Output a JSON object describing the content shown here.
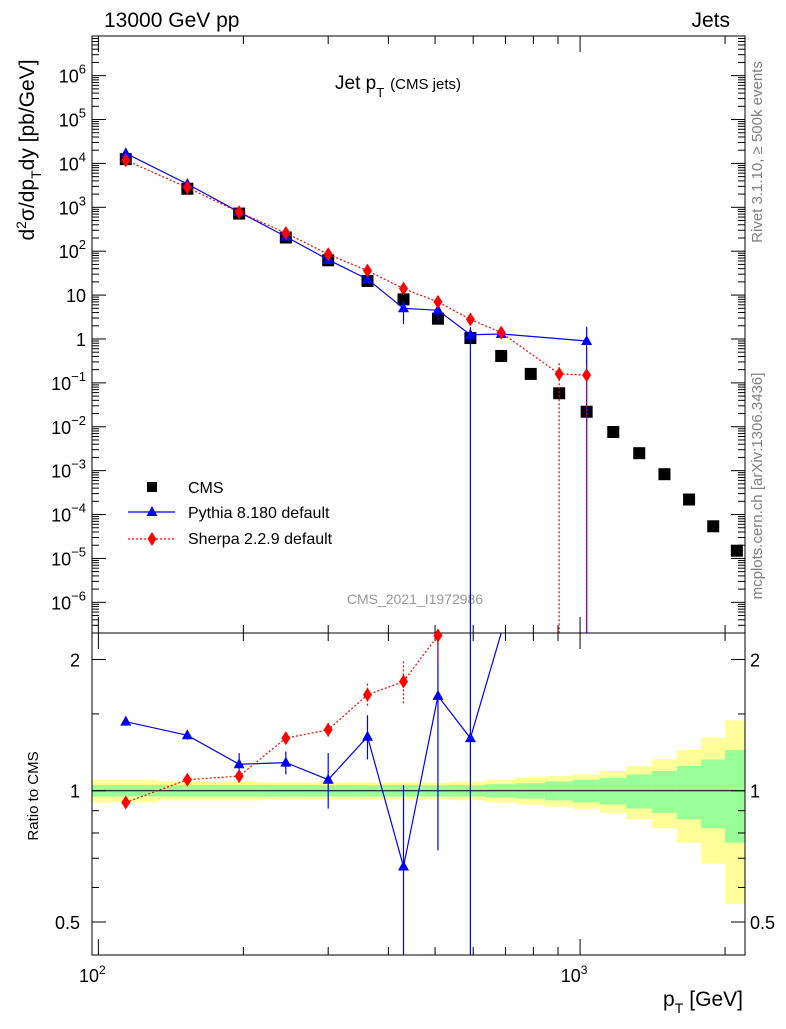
{
  "header": {
    "left": "13000 GeV pp",
    "right": "Jets"
  },
  "side_labels": {
    "rivet": "Rivet 3.1.10, ≥ 500k events",
    "source": "mcplots.cern.ch [arXiv:1306.3436]"
  },
  "watermark": "CMS_2021_I1972986",
  "chart_data": [
    {
      "type": "scatter",
      "panel": "main",
      "title_main": "Jet p",
      "title_sub": "T",
      "title_extra": "(CMS jets)",
      "ylabel": "d²σ/dp_T dy [pb/GeV]",
      "yscale": "log",
      "ylim": [
        2e-07,
        8000000.0
      ],
      "xscale": "log",
      "xlim": [
        97,
        2200
      ],
      "y_ticks": [
        {
          "value": 1000000.0,
          "base": "10",
          "exp": "6"
        },
        {
          "value": 100000.0,
          "base": "10",
          "exp": "5"
        },
        {
          "value": 10000.0,
          "base": "10",
          "exp": "4"
        },
        {
          "value": 1000.0,
          "base": "10",
          "exp": "3"
        },
        {
          "value": 100.0,
          "base": "10",
          "exp": "2"
        },
        {
          "value": 10,
          "base": "10",
          "exp": ""
        },
        {
          "value": 1,
          "base": "1",
          "exp": ""
        },
        {
          "value": 0.1,
          "base": "10",
          "exp": "−1"
        },
        {
          "value": 0.01,
          "base": "10",
          "exp": "−2"
        },
        {
          "value": 0.001,
          "base": "10",
          "exp": "−3"
        },
        {
          "value": 0.0001,
          "base": "10",
          "exp": "−4"
        },
        {
          "value": 1e-05,
          "base": "10",
          "exp": "−5"
        },
        {
          "value": 1e-06,
          "base": "10",
          "exp": "−6"
        }
      ],
      "legend_position": "lower-left",
      "series": [
        {
          "name": "CMS",
          "color": "#000000",
          "marker": "square",
          "x": [
            114,
            153,
            196,
            245,
            300,
            362,
            430,
            507,
            592,
            686,
            790,
            905,
            1032,
            1172,
            1327,
            1497,
            1684,
            1890,
            2116
          ],
          "y": [
            12500,
            2650,
            720,
            205,
            62,
            21,
            8,
            2.9,
            1.05,
            0.41,
            0.16,
            0.058,
            0.022,
            0.0076,
            0.0025,
            0.00083,
            0.00022,
            5.4e-05,
            1.5e-05
          ]
        },
        {
          "name": "Pythia 8.180 default",
          "color": "#0000ff",
          "marker": "triangle",
          "line": "solid",
          "x": [
            114,
            153,
            196,
            245,
            300,
            362,
            430,
            507,
            592,
            686,
            1032
          ],
          "y": [
            17000,
            3400,
            780,
            215,
            64,
            23,
            5,
            4.5,
            1.25,
            1.3,
            0.9
          ],
          "err_up": [
            0,
            0,
            0,
            0,
            0,
            3,
            2.5,
            2.5,
            0.6,
            0,
            1.0
          ],
          "err_dn": [
            0,
            0,
            0,
            0,
            0,
            3,
            2.8,
            2.0,
            1.25,
            0,
            0.9
          ]
        },
        {
          "name": "Sherpa 2.2.9 default",
          "color": "#ff0000",
          "marker": "diamond",
          "line": "dotted",
          "x": [
            114,
            153,
            196,
            245,
            300,
            362,
            430,
            507,
            592,
            686,
            905,
            1032
          ],
          "y": [
            11800,
            2820,
            770,
            260,
            85,
            36,
            14,
            7,
            2.8,
            1.4,
            0.16,
            0.15
          ],
          "err_up": [
            0,
            0,
            0,
            0,
            0,
            0,
            2,
            1.2,
            0.6,
            0.3,
            0.12,
            0.1
          ],
          "err_dn": [
            0,
            0,
            0,
            0,
            0,
            0,
            2,
            1.2,
            0.6,
            0.3,
            0.16,
            0.15
          ]
        }
      ]
    },
    {
      "type": "line",
      "panel": "ratio",
      "ylabel": "Ratio to CMS",
      "xlabel": "p_T [GeV]",
      "yscale": "log",
      "ylim": [
        0.42,
        2.3
      ],
      "y_ticks": [
        "0.5",
        "1",
        "2"
      ],
      "x_ticks": [
        {
          "value": 100,
          "base": "10",
          "exp": "2"
        },
        {
          "value": 1000,
          "base": "10",
          "exp": "3"
        }
      ],
      "reference_line": 1,
      "uncertainty_bands": {
        "edges": [
          97,
          133,
          173,
          219,
          271,
          330,
          395,
          467,
          548,
          637,
          736,
          845,
          966,
          1099,
          1246,
          1408,
          1588,
          1784,
          2000,
          2200
        ],
        "inner_color": "#99ff99",
        "outer_color": "#ffff99",
        "inner_half": [
          0.03,
          0.03,
          0.03,
          0.03,
          0.03,
          0.03,
          0.03,
          0.03,
          0.03,
          0.035,
          0.04,
          0.05,
          0.06,
          0.07,
          0.09,
          0.11,
          0.14,
          0.18,
          0.24
        ],
        "outer_half": [
          0.06,
          0.05,
          0.05,
          0.045,
          0.045,
          0.045,
          0.045,
          0.045,
          0.05,
          0.06,
          0.07,
          0.08,
          0.09,
          0.11,
          0.14,
          0.18,
          0.24,
          0.32,
          0.45
        ]
      },
      "series": [
        {
          "name": "Pythia 8.180 default",
          "color": "#0000ff",
          "marker": "triangle",
          "line": "solid",
          "x": [
            114,
            153,
            196,
            245,
            300,
            362,
            430,
            507,
            592,
            686
          ],
          "y": [
            1.44,
            1.34,
            1.15,
            1.16,
            1.06,
            1.33,
            0.67,
            1.65,
            1.32,
            2.6
          ],
          "err_up": [
            0,
            0.03,
            0.07,
            0.07,
            0.16,
            0.16,
            0.36,
            0.65,
            1.2,
            0
          ],
          "err_dn": [
            0,
            0.03,
            0.07,
            0.07,
            0.15,
            0.15,
            0.3,
            0.92,
            0.95,
            0
          ],
          "markers": [
            true,
            true,
            true,
            true,
            true,
            true,
            true,
            true,
            true,
            false
          ]
        },
        {
          "name": "Sherpa 2.2.9 default",
          "color": "#ff0000",
          "marker": "diamond",
          "line": "dotted",
          "x": [
            114,
            153,
            196,
            245,
            300,
            362,
            430,
            507
          ],
          "y": [
            0.94,
            1.06,
            1.08,
            1.32,
            1.38,
            1.66,
            1.78,
            2.27
          ],
          "err_up": [
            0,
            0,
            0,
            0.03,
            0.05,
            0.1,
            0.2,
            0.3
          ],
          "err_dn": [
            0,
            0,
            0,
            0.03,
            0.05,
            0.1,
            0.2,
            0.3
          ]
        }
      ]
    }
  ]
}
